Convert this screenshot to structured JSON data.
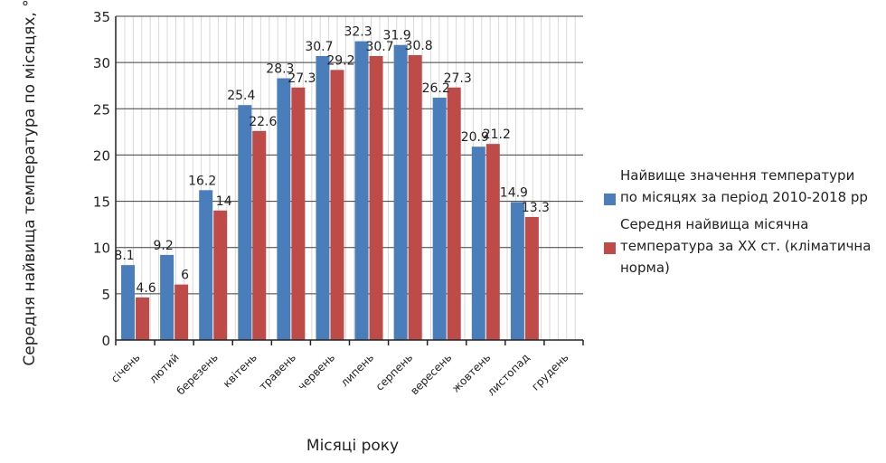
{
  "chart_data": {
    "type": "bar",
    "title": "",
    "xlabel": "Місяці року",
    "ylabel": "Середня найвища температура по місяцях, °C",
    "ylim": [
      0,
      35
    ],
    "yticks": [
      0,
      5,
      10,
      15,
      20,
      25,
      30,
      35
    ],
    "grid": true,
    "legend": "right",
    "categories": [
      "січень",
      "лютий",
      "березень",
      "квітень",
      "травень",
      "червень",
      "липень",
      "серпень",
      "вересень",
      "жовтень",
      "листопад",
      "грудень"
    ],
    "series": [
      {
        "name": "Найвище значення температури по місяцях за період 2010-2018 рр",
        "color": "#4a7ebb",
        "values": [
          8.1,
          9.2,
          16.2,
          25.4,
          28.3,
          30.7,
          32.3,
          31.9,
          26.2,
          20.9,
          14.9,
          null
        ]
      },
      {
        "name": "Середня найвища місячна температура за ХХ ст. (кліматична норма)",
        "color": "#be4b48",
        "values": [
          4.6,
          6,
          14,
          22.6,
          27.3,
          29.2,
          30.7,
          30.8,
          27.3,
          21.2,
          13.3,
          null
        ]
      }
    ]
  }
}
